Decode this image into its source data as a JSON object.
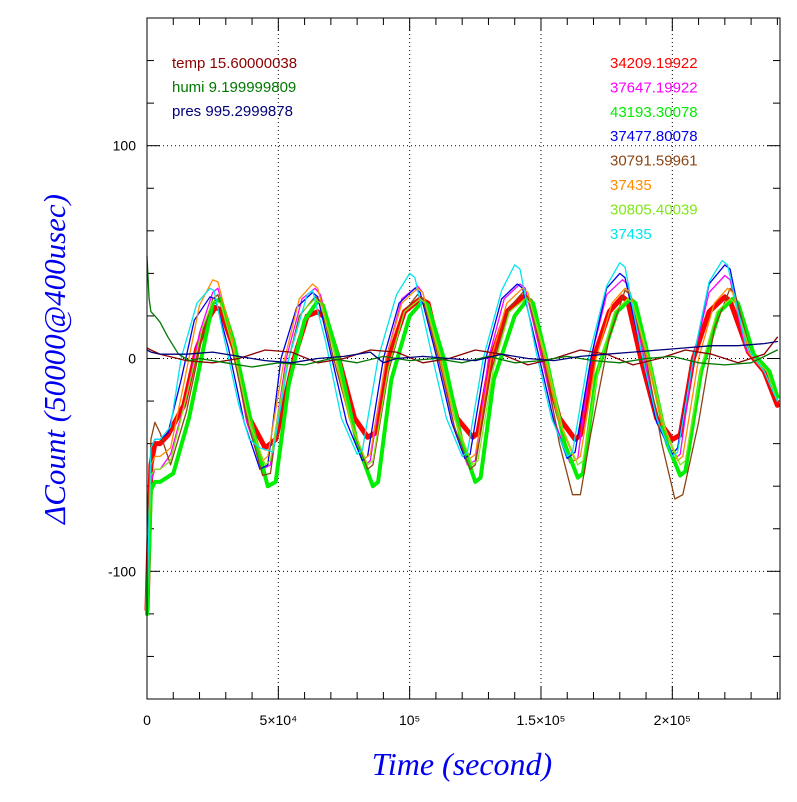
{
  "chart_data": {
    "type": "line",
    "xlabel": "Time (second)",
    "ylabel": "ΔCount (50000@400usec)",
    "xlim": [
      0,
      241000
    ],
    "ylim": [
      -160,
      160
    ],
    "x_ticks": [
      {
        "value": 0,
        "label": "0"
      },
      {
        "value": 50000,
        "label": "5×10⁴"
      },
      {
        "value": 100000,
        "label": "10⁵"
      },
      {
        "value": 150000,
        "label": "1.5×10⁵"
      },
      {
        "value": 200000,
        "label": "2×10⁵"
      }
    ],
    "y_ticks": [
      {
        "value": -100,
        "label": "-100"
      },
      {
        "value": 0,
        "label": "0"
      },
      {
        "value": 100,
        "label": "100"
      }
    ],
    "x_gridlines": [
      50000,
      100000,
      150000,
      200000
    ],
    "y_gridlines": [
      -100,
      0,
      100
    ],
    "env_legend": [
      {
        "label": "temp 15.60000038",
        "color": "#8b0000"
      },
      {
        "label": "humi 9.199999809",
        "color": "#007800"
      },
      {
        "label": "pres 995.2999878",
        "color": "#00007a"
      }
    ],
    "series": [
      {
        "name": "34209.19922",
        "color": "#ff0000",
        "stroke_width": 5,
        "x": [
          0,
          1500,
          3000,
          5000,
          8000,
          14000,
          19000,
          24000,
          26000,
          28000,
          33000,
          39000,
          45000,
          49000,
          56000,
          61000,
          65000,
          68000,
          73000,
          79000,
          84000,
          87000,
          92000,
          98000,
          104000,
          107000,
          112000,
          118000,
          124000,
          126000,
          131000,
          137000,
          143000,
          146000,
          151000,
          157000,
          163000,
          165000,
          170000,
          176000,
          181000,
          183000,
          188000,
          194000,
          200000,
          203000,
          208000,
          214000,
          220000,
          222000,
          229000,
          235000,
          240000
        ],
        "y": [
          -118,
          -50,
          -40,
          -40,
          -36,
          -22,
          5,
          20,
          24,
          23,
          5,
          -28,
          -42,
          -38,
          0,
          20,
          22,
          19,
          0,
          -28,
          -37,
          -35,
          0,
          22,
          28,
          26,
          0,
          -28,
          -37,
          -35,
          0,
          22,
          29,
          27,
          0,
          -28,
          -38,
          -36,
          0,
          22,
          29,
          27,
          0,
          -28,
          -38,
          -36,
          0,
          22,
          29,
          27,
          3,
          -6,
          -22
        ]
      },
      {
        "name": "37647.19922",
        "color": "#ff00ff",
        "x": [
          0,
          1500,
          3000,
          5000,
          9000,
          15000,
          20000,
          25000,
          27000,
          32000,
          38000,
          44000,
          47000,
          53000,
          59000,
          64000,
          66000,
          72000,
          78000,
          83000,
          85000,
          91000,
          97000,
          103000,
          105000,
          111000,
          117000,
          122000,
          125000,
          130000,
          136000,
          142000,
          144000,
          150000,
          156000,
          161000,
          164000,
          169000,
          175000,
          181000,
          183000,
          189000,
          195000,
          201000,
          203000,
          208000,
          214000,
          220000,
          222000,
          228000,
          235000,
          240000
        ],
        "y": [
          -100,
          -58,
          -52,
          -52,
          -45,
          -18,
          12,
          31,
          33,
          10,
          -30,
          -52,
          -50,
          0,
          28,
          33,
          30,
          2,
          -32,
          -50,
          -48,
          0,
          28,
          34,
          31,
          2,
          -32,
          -50,
          -48,
          0,
          28,
          35,
          33,
          2,
          -32,
          -49,
          -47,
          0,
          30,
          37,
          35,
          2,
          -32,
          -47,
          -45,
          0,
          31,
          39,
          37,
          4,
          -6,
          -20
        ]
      },
      {
        "name": "43193.30078",
        "color": "#00ee00",
        "stroke_width": 4,
        "x": [
          0,
          1500,
          3000,
          5000,
          10000,
          16000,
          22000,
          25000,
          28000,
          33000,
          40000,
          46000,
          49000,
          54000,
          60000,
          65000,
          67000,
          73000,
          80000,
          86000,
          88000,
          93000,
          100000,
          105000,
          107000,
          113000,
          120000,
          125000,
          127000,
          132000,
          140000,
          145000,
          147000,
          152000,
          159000,
          164000,
          166000,
          171000,
          179000,
          184000,
          186000,
          191000,
          198000,
          203000,
          205000,
          211000,
          218000,
          223000,
          225000,
          231000,
          237000,
          240000
        ],
        "y": [
          -120,
          -62,
          -58,
          -58,
          -54,
          -28,
          8,
          26,
          28,
          8,
          -32,
          -60,
          -58,
          -12,
          18,
          27,
          25,
          0,
          -40,
          -60,
          -58,
          -10,
          20,
          27,
          25,
          0,
          -40,
          -58,
          -56,
          -10,
          20,
          28,
          26,
          0,
          -40,
          -56,
          -54,
          -8,
          22,
          28,
          26,
          0,
          -40,
          -55,
          -53,
          -6,
          22,
          28,
          26,
          2,
          -6,
          -18
        ]
      },
      {
        "name": "37477.80078",
        "color": "#0000ee",
        "x": [
          0,
          1500,
          3000,
          5000,
          8000,
          13000,
          18000,
          24000,
          26000,
          31000,
          37000,
          43000,
          46000,
          51000,
          57000,
          63000,
          65000,
          70000,
          76000,
          82000,
          84000,
          90000,
          96000,
          102000,
          104000,
          110000,
          116000,
          121000,
          123000,
          129000,
          135000,
          141000,
          143000,
          149000,
          155000,
          160000,
          163000,
          169000,
          175000,
          180000,
          182000,
          188000,
          194000,
          200000,
          202000,
          208000,
          214000,
          220000,
          222000,
          228000,
          235000,
          240000
        ],
        "y": [
          -110,
          -42,
          -38,
          -38,
          -35,
          -10,
          18,
          29,
          28,
          5,
          -30,
          -52,
          -50,
          0,
          24,
          31,
          29,
          2,
          -30,
          -48,
          -46,
          0,
          26,
          33,
          31,
          2,
          -30,
          -47,
          -45,
          0,
          28,
          35,
          33,
          2,
          -30,
          -47,
          -44,
          0,
          33,
          40,
          38,
          4,
          -30,
          -45,
          -42,
          0,
          35,
          44,
          42,
          6,
          -6,
          -20
        ]
      },
      {
        "name": "30791.59961",
        "color": "#8b4513",
        "x": [
          0,
          1500,
          3000,
          5000,
          9000,
          15000,
          21000,
          25000,
          27000,
          32000,
          38000,
          44000,
          47000,
          52000,
          58000,
          64000,
          66000,
          71000,
          78000,
          84000,
          86000,
          92000,
          98000,
          103000,
          105000,
          111000,
          117000,
          123000,
          125000,
          131000,
          138000,
          143000,
          145000,
          151000,
          157000,
          162000,
          165000,
          169000,
          176000,
          182000,
          184000,
          190000,
          196000,
          201000,
          204000,
          210000,
          216000,
          222000,
          224000,
          230000,
          236000,
          240000
        ],
        "y": [
          -115,
          -38,
          -30,
          -35,
          -50,
          -25,
          10,
          28,
          30,
          8,
          -28,
          -55,
          -54,
          -10,
          20,
          29,
          27,
          0,
          -32,
          -52,
          -50,
          -6,
          22,
          30,
          28,
          0,
          -32,
          -52,
          -50,
          -6,
          24,
          31,
          29,
          0,
          -40,
          -64,
          -64,
          -35,
          10,
          32,
          30,
          0,
          -40,
          -66,
          -64,
          -30,
          14,
          33,
          30,
          2,
          -6,
          -20
        ]
      },
      {
        "name": "37435",
        "color": "#ff8c00",
        "x": [
          0,
          1500,
          3000,
          5000,
          9000,
          14000,
          20000,
          25000,
          27000,
          32000,
          38000,
          44000,
          46000,
          52000,
          58000,
          63000,
          65000,
          71000,
          77000,
          83000,
          85000,
          91000,
          97000,
          103000,
          105000,
          111000,
          117000,
          123000,
          125000,
          131000,
          137000,
          143000,
          145000,
          151000,
          157000,
          163000,
          165000,
          171000,
          177000,
          182000,
          184000,
          190000,
          196000,
          202000,
          204000,
          210000,
          216000,
          221000,
          223000,
          229000,
          235000,
          240000
        ],
        "y": [
          -110,
          -50,
          -46,
          -46,
          -42,
          -12,
          25,
          37,
          36,
          12,
          -25,
          -48,
          -46,
          -2,
          28,
          35,
          33,
          4,
          -28,
          -47,
          -45,
          0,
          26,
          33,
          31,
          2,
          -28,
          -47,
          -45,
          0,
          26,
          33,
          31,
          2,
          -30,
          -48,
          -46,
          0,
          26,
          33,
          31,
          2,
          -30,
          -48,
          -46,
          0,
          26,
          33,
          31,
          3,
          -6,
          -20
        ]
      },
      {
        "name": "30805.40039",
        "color": "#7fe817",
        "x": [
          0,
          1500,
          3000,
          5000,
          9000,
          15000,
          21000,
          25000,
          28000,
          33000,
          39000,
          45000,
          47000,
          53000,
          59000,
          64000,
          66000,
          72000,
          78000,
          84000,
          86000,
          92000,
          98000,
          104000,
          106000,
          112000,
          118000,
          124000,
          126000,
          132000,
          138000,
          144000,
          146000,
          152000,
          158000,
          164000,
          166000,
          172000,
          178000,
          183000,
          185000,
          191000,
          197000,
          203000,
          205000,
          211000,
          217000,
          222000,
          224000,
          230000,
          236000,
          240000
        ],
        "y": [
          -110,
          -55,
          -52,
          -52,
          -48,
          -18,
          14,
          27,
          26,
          4,
          -30,
          -50,
          -48,
          -4,
          22,
          28,
          26,
          0,
          -32,
          -50,
          -48,
          -4,
          22,
          28,
          26,
          0,
          -32,
          -50,
          -48,
          -4,
          22,
          28,
          26,
          0,
          -32,
          -50,
          -48,
          -4,
          22,
          28,
          26,
          0,
          -32,
          -50,
          -48,
          -4,
          22,
          28,
          26,
          2,
          -6,
          -20
        ]
      },
      {
        "name": "37435",
        "color": "#00e5ee",
        "x": [
          0,
          1500,
          3000,
          5000,
          9000,
          13000,
          19000,
          24000,
          25500,
          30000,
          35000,
          39000,
          43000,
          48000,
          54000,
          61000,
          63000,
          68000,
          74000,
          80000,
          82000,
          88000,
          95000,
          100000,
          102000,
          108000,
          114000,
          120000,
          122000,
          128000,
          135000,
          140000,
          142000,
          148000,
          154000,
          160000,
          162000,
          168000,
          175000,
          180000,
          182000,
          188000,
          194000,
          200000,
          202000,
          208000,
          214000,
          219000,
          221000,
          228000,
          235000,
          240000
        ],
        "y": [
          -115,
          -42,
          -38,
          -38,
          -32,
          0,
          26,
          33,
          32,
          6,
          -22,
          -38,
          -42,
          -44,
          0,
          30,
          32,
          8,
          -28,
          -45,
          -43,
          0,
          30,
          40,
          38,
          4,
          -28,
          -46,
          -44,
          0,
          32,
          44,
          42,
          4,
          -28,
          -46,
          -44,
          0,
          34,
          45,
          43,
          4,
          -28,
          -46,
          -44,
          0,
          36,
          46,
          44,
          6,
          -6,
          -20
        ]
      },
      {
        "name": "temp",
        "color": "#8b0000",
        "x": [
          0,
          1500,
          5000,
          15000,
          25000,
          35000,
          45000,
          55000,
          65000,
          75000,
          85000,
          95000,
          105000,
          115000,
          125000,
          135000,
          145000,
          155000,
          165000,
          175000,
          185000,
          195000,
          205000,
          215000,
          225000,
          235000,
          240000
        ],
        "y": [
          5,
          4,
          2,
          -1,
          -2,
          0,
          4,
          3,
          -2,
          0,
          4,
          3,
          -2,
          0,
          4,
          2,
          -3,
          0,
          4,
          2,
          -3,
          0,
          4,
          2,
          -2,
          2,
          10
        ]
      },
      {
        "name": "humi",
        "color": "#007800",
        "x": [
          0,
          800,
          1500,
          3000,
          5000,
          8000,
          12000,
          16000,
          20000,
          30000,
          40000,
          50000,
          60000,
          70000,
          80000,
          90000,
          100000,
          110000,
          120000,
          130000,
          140000,
          150000,
          160000,
          170000,
          180000,
          190000,
          200000,
          210000,
          220000,
          230000,
          240000
        ],
        "y": [
          48,
          28,
          22,
          20,
          17,
          10,
          2,
          -1,
          0,
          -2,
          -4,
          -2,
          -3,
          0,
          -2,
          1,
          -1,
          0,
          -2,
          1,
          -2,
          -1,
          1,
          -1,
          -2,
          0,
          1,
          -2,
          -3,
          -2,
          4
        ]
      },
      {
        "name": "pres",
        "color": "#00007a",
        "x": [
          0,
          1500,
          5000,
          15000,
          25000,
          35000,
          45000,
          55000,
          65000,
          75000,
          85000,
          90000,
          95000,
          105000,
          115000,
          125000,
          135000,
          145000,
          155000,
          165000,
          175000,
          185000,
          195000,
          205000,
          215000,
          225000,
          235000,
          240000
        ],
        "y": [
          4,
          3,
          2,
          2,
          3,
          1,
          -1,
          -2,
          0,
          1,
          3,
          -2,
          0,
          1,
          0,
          -1,
          2,
          0,
          -1,
          1,
          2,
          3,
          4,
          5,
          6,
          6,
          7,
          8
        ]
      }
    ]
  }
}
